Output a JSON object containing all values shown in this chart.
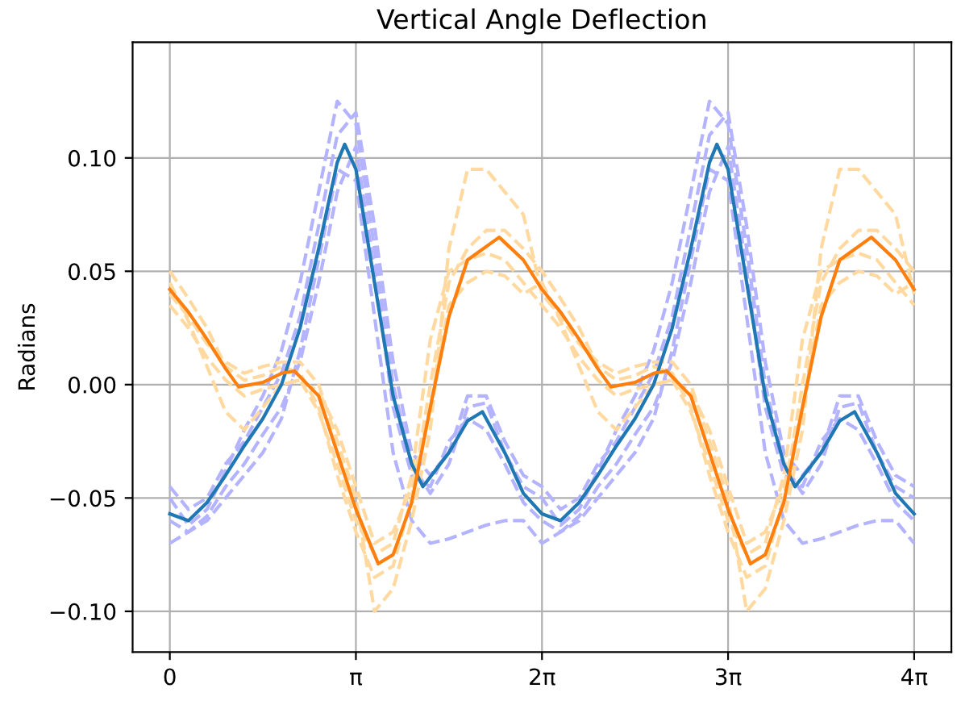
{
  "chart_data": {
    "type": "line",
    "title": "Vertical Angle Deflection",
    "ylabel": "Radians",
    "xlim": [
      -0.628,
      13.195
    ],
    "ylim": [
      -0.118,
      0.151
    ],
    "xticks": [
      0,
      {
        "value": 3.14159,
        "label": "π"
      },
      {
        "value": 6.28319,
        "label": "2π"
      },
      {
        "value": 9.42478,
        "label": "3π"
      },
      {
        "value": 12.56637,
        "label": "4π"
      }
    ],
    "yticks": [
      {
        "value": -0.1,
        "label": "−0.10"
      },
      {
        "value": -0.05,
        "label": "−0.05"
      },
      {
        "value": 0.0,
        "label": "0.00"
      },
      {
        "value": 0.05,
        "label": "0.05"
      },
      {
        "value": 0.1,
        "label": "0.10"
      }
    ],
    "grid": true,
    "x": [
      0,
      0.314,
      0.628,
      0.942,
      1.257,
      1.571,
      1.885,
      2.199,
      2.513,
      2.827,
      3.142,
      3.456,
      3.77,
      4.084,
      4.398,
      4.712,
      5.027,
      5.341,
      5.655,
      5.969,
      6.283,
      6.597,
      6.912,
      7.226,
      7.54,
      7.854,
      8.168,
      8.482,
      8.796,
      9.111,
      9.425,
      9.739,
      10.053,
      10.367,
      10.681,
      10.996,
      11.31,
      11.624,
      11.938,
      12.252,
      12.566
    ],
    "series": [
      {
        "color": "#b3b3ff",
        "line_style": "dashed",
        "values": [
          -0.05,
          -0.062,
          -0.055,
          -0.038,
          -0.02,
          -0.005,
          0.015,
          0.045,
          0.085,
          0.125,
          0.115,
          0.06,
          0.0,
          -0.035,
          -0.048,
          -0.035,
          -0.01,
          -0.008,
          -0.03,
          -0.045,
          -0.05,
          -0.062,
          -0.055,
          -0.038,
          -0.02,
          -0.005,
          0.015,
          0.045,
          0.085,
          0.125,
          0.115,
          0.06,
          0.0,
          -0.035,
          -0.048,
          -0.035,
          -0.01,
          -0.008,
          -0.03,
          -0.045,
          -0.05
        ]
      },
      {
        "color": "#b3b3ff",
        "line_style": "dashed",
        "values": [
          -0.06,
          -0.065,
          -0.058,
          -0.045,
          -0.035,
          -0.022,
          -0.01,
          0.01,
          0.045,
          0.085,
          0.105,
          0.05,
          -0.01,
          -0.04,
          -0.045,
          -0.025,
          -0.015,
          -0.02,
          -0.035,
          -0.052,
          -0.06,
          -0.065,
          -0.058,
          -0.045,
          -0.035,
          -0.022,
          -0.01,
          0.01,
          0.045,
          0.085,
          0.105,
          0.05,
          -0.01,
          -0.04,
          -0.045,
          -0.025,
          -0.015,
          -0.02,
          -0.035,
          -0.052,
          -0.06
        ]
      },
      {
        "color": "#b3b3ff",
        "line_style": "dashed",
        "values": [
          -0.045,
          -0.055,
          -0.05,
          -0.035,
          -0.025,
          -0.01,
          0.005,
          0.03,
          0.07,
          0.11,
          0.12,
          0.07,
          0.01,
          -0.03,
          -0.04,
          -0.03,
          -0.005,
          -0.005,
          -0.025,
          -0.04,
          -0.045,
          -0.055,
          -0.05,
          -0.035,
          -0.025,
          -0.01,
          0.005,
          0.03,
          0.07,
          0.11,
          0.12,
          0.07,
          0.01,
          -0.03,
          -0.04,
          -0.03,
          -0.005,
          -0.005,
          -0.025,
          -0.04,
          -0.045
        ]
      },
      {
        "color": "#b3b3ff",
        "line_style": "dashed",
        "values": [
          -0.07,
          -0.065,
          -0.06,
          -0.05,
          -0.04,
          -0.03,
          -0.015,
          0.015,
          0.055,
          0.095,
          0.09,
          0.03,
          -0.03,
          -0.06,
          -0.07,
          -0.068,
          -0.065,
          -0.062,
          -0.06,
          -0.06,
          -0.07,
          -0.065,
          -0.06,
          -0.05,
          -0.04,
          -0.03,
          -0.015,
          0.015,
          0.055,
          0.095,
          0.09,
          0.03,
          -0.03,
          -0.06,
          -0.07,
          -0.068,
          -0.065,
          -0.062,
          -0.06,
          -0.06,
          -0.07
        ]
      },
      {
        "color": "#ffd9a0",
        "line_style": "dashed",
        "values": [
          0.05,
          0.038,
          0.025,
          0.008,
          0.002,
          0.004,
          0.008,
          0.005,
          -0.01,
          -0.04,
          -0.065,
          -0.085,
          -0.08,
          -0.05,
          0.0,
          0.045,
          0.06,
          0.068,
          0.068,
          0.06,
          0.05,
          0.038,
          0.025,
          0.008,
          0.002,
          0.004,
          0.008,
          0.005,
          -0.01,
          -0.04,
          -0.065,
          -0.085,
          -0.08,
          -0.05,
          0.0,
          0.045,
          0.06,
          0.068,
          0.068,
          0.06,
          0.05
        ]
      },
      {
        "color": "#ffd9a0",
        "line_style": "dashed",
        "values": [
          0.035,
          0.025,
          0.012,
          0.002,
          -0.005,
          -0.002,
          0.0,
          0.002,
          -0.012,
          -0.035,
          -0.06,
          -0.075,
          -0.07,
          -0.04,
          0.02,
          0.05,
          0.055,
          0.058,
          0.055,
          0.045,
          0.035,
          0.025,
          0.012,
          0.002,
          -0.005,
          -0.002,
          0.0,
          0.002,
          -0.012,
          -0.035,
          -0.06,
          -0.075,
          -0.07,
          -0.04,
          0.02,
          0.05,
          0.055,
          0.058,
          0.055,
          0.045,
          0.035
        ]
      },
      {
        "color": "#ffd9a0",
        "line_style": "dashed",
        "values": [
          0.04,
          0.03,
          0.018,
          0.01,
          0.005,
          0.008,
          0.01,
          0.01,
          0.0,
          -0.025,
          -0.05,
          -0.1,
          -0.09,
          -0.06,
          -0.02,
          0.06,
          0.095,
          0.095,
          0.085,
          0.075,
          0.04,
          0.03,
          0.018,
          0.01,
          0.005,
          0.008,
          0.01,
          0.01,
          0.0,
          -0.025,
          -0.05,
          -0.1,
          -0.09,
          -0.06,
          -0.02,
          0.06,
          0.095,
          0.095,
          0.085,
          0.075,
          0.04
        ]
      },
      {
        "color": "#ffd9a0",
        "line_style": "dashed",
        "values": [
          0.045,
          0.028,
          0.008,
          -0.012,
          -0.02,
          -0.01,
          0.0,
          0.002,
          -0.003,
          -0.02,
          -0.045,
          -0.07,
          -0.065,
          -0.045,
          -0.01,
          0.035,
          0.045,
          0.05,
          0.048,
          0.04,
          0.045,
          0.028,
          0.008,
          -0.012,
          -0.02,
          -0.01,
          0.0,
          0.002,
          -0.003,
          -0.02,
          -0.045,
          -0.07,
          -0.065,
          -0.045,
          -0.01,
          0.035,
          0.045,
          0.05,
          0.048,
          0.04,
          0.045
        ]
      },
      {
        "color": "#1f77b4",
        "line_style": "solid",
        "x": [
          0,
          0.314,
          0.628,
          0.942,
          1.257,
          1.571,
          1.885,
          2.199,
          2.513,
          2.827,
          2.953,
          3.142,
          3.456,
          3.77,
          4.084,
          4.273,
          4.712,
          5.027,
          5.278,
          5.655,
          5.969,
          6.283,
          6.597,
          6.911,
          7.226,
          7.54,
          7.854,
          8.168,
          8.482,
          8.796,
          9.111,
          9.236,
          9.425,
          9.739,
          10.053,
          10.367,
          10.556,
          10.996,
          11.31,
          11.561,
          11.938,
          12.252,
          12.566
        ],
        "values": [
          -0.057,
          -0.06,
          -0.052,
          -0.04,
          -0.027,
          -0.015,
          0.0,
          0.025,
          0.06,
          0.098,
          0.106,
          0.095,
          0.045,
          -0.005,
          -0.035,
          -0.045,
          -0.03,
          -0.016,
          -0.012,
          -0.03,
          -0.048,
          -0.057,
          -0.06,
          -0.052,
          -0.04,
          -0.027,
          -0.015,
          0.0,
          0.025,
          0.06,
          0.098,
          0.106,
          0.095,
          0.045,
          -0.005,
          -0.035,
          -0.045,
          -0.03,
          -0.016,
          -0.012,
          -0.03,
          -0.048,
          -0.057
        ]
      },
      {
        "color": "#ff7f0e",
        "line_style": "solid",
        "x": [
          0,
          0.314,
          0.628,
          0.942,
          1.162,
          1.571,
          1.885,
          2.105,
          2.513,
          2.827,
          3.142,
          3.519,
          3.77,
          4.084,
          4.398,
          4.712,
          5.027,
          5.561,
          5.969,
          6.283,
          6.597,
          6.911,
          7.226,
          7.446,
          7.854,
          8.168,
          8.388,
          8.796,
          9.111,
          9.425,
          9.802,
          10.053,
          10.367,
          10.681,
          10.996,
          11.31,
          11.844,
          12.252,
          12.566
        ],
        "values": [
          0.042,
          0.032,
          0.02,
          0.007,
          -0.001,
          0.001,
          0.005,
          0.006,
          -0.005,
          -0.03,
          -0.055,
          -0.079,
          -0.075,
          -0.052,
          -0.01,
          0.03,
          0.055,
          0.065,
          0.055,
          0.042,
          0.032,
          0.02,
          0.007,
          -0.001,
          0.001,
          0.005,
          0.006,
          -0.005,
          -0.03,
          -0.055,
          -0.079,
          -0.075,
          -0.052,
          -0.01,
          0.03,
          0.055,
          0.065,
          0.055,
          0.042
        ]
      }
    ]
  }
}
